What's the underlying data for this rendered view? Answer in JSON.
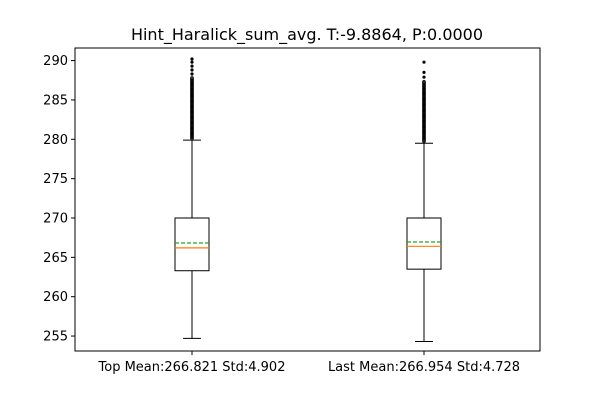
{
  "chart_data": {
    "type": "boxplot",
    "title": "Hint_Haralick_sum_avg. T:-9.8864, P:0.0000",
    "xlabel": "",
    "ylabel": "",
    "ylim": [
      253.1,
      291.6
    ],
    "yticks": [
      255,
      260,
      265,
      270,
      275,
      280,
      285,
      290
    ],
    "grid": false,
    "categories": [
      "Top Mean:266.821 Std:4.902",
      "Last Mean:266.954 Std:4.728"
    ],
    "boxes": [
      {
        "whisker_low": 254.7,
        "q1": 263.3,
        "median": 266.2,
        "mean": 266.821,
        "q3": 270.0,
        "whisker_high": 279.9,
        "fliers_dense_from": 280.1,
        "fliers_dense_to": 287.8,
        "fliers_sparse": [
          288.3,
          288.8,
          289.3,
          289.8,
          290.2
        ]
      },
      {
        "whisker_low": 254.3,
        "q1": 263.5,
        "median": 266.4,
        "mean": 266.954,
        "q3": 270.0,
        "whisker_high": 279.5,
        "fliers_dense_from": 279.7,
        "fliers_dense_to": 287.3,
        "fliers_sparse": [
          287.9,
          288.5,
          289.8
        ]
      }
    ],
    "colors": {
      "box": "#000000",
      "median": "#ff7f0e",
      "mean": "#2ca02c"
    }
  }
}
